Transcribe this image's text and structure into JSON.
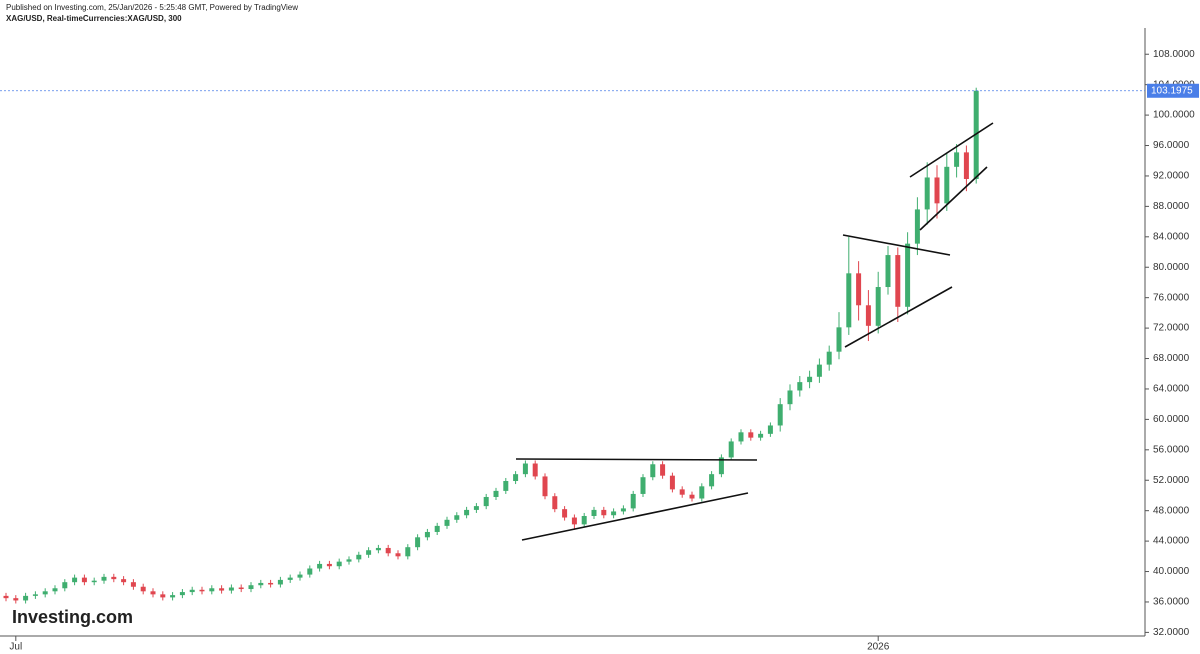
{
  "chart_data": {
    "type": "candlestick",
    "published": "Published on Investing.com, 25/Jan/2026 - 5:25:48 GMT, Powered by TradingView",
    "title": "XAG/USD, Real-timeCurrencies:XAG/USD, 300",
    "logo": "Investing.com",
    "up_color": "#3fae6f",
    "down_color": "#e0464f",
    "last_price": 103.1975,
    "last_price_color": "#4a7ee8",
    "ylim": [
      31,
      112.5
    ],
    "yticks": [
      {
        "value": 32,
        "label": "32.0000"
      },
      {
        "value": 36,
        "label": "36.0000"
      },
      {
        "value": 40,
        "label": "40.0000"
      },
      {
        "value": 44,
        "label": "44.0000"
      },
      {
        "value": 48,
        "label": "48.0000"
      },
      {
        "value": 52,
        "label": "52.0000"
      },
      {
        "value": 56,
        "label": "56.0000"
      },
      {
        "value": 60,
        "label": "60.0000"
      },
      {
        "value": 64,
        "label": "64.0000"
      },
      {
        "value": 68,
        "label": "68.0000"
      },
      {
        "value": 72,
        "label": "72.0000"
      },
      {
        "value": 76,
        "label": "76.0000"
      },
      {
        "value": 80,
        "label": "80.0000"
      },
      {
        "value": 84,
        "label": "84.0000"
      },
      {
        "value": 88,
        "label": "88.0000"
      },
      {
        "value": 92,
        "label": "92.0000"
      },
      {
        "value": 96,
        "label": "96.0000"
      },
      {
        "value": 100,
        "label": "100.0000"
      },
      {
        "value": 104,
        "label": "104.0000"
      },
      {
        "value": 108,
        "label": "108.0000"
      }
    ],
    "categories": [
      null,
      "Jul",
      null,
      null,
      null,
      null,
      null,
      null,
      null,
      null,
      null,
      null,
      null,
      null,
      null,
      null,
      null,
      null,
      null,
      null,
      null,
      null,
      null,
      null,
      null,
      null,
      null,
      null,
      null,
      null,
      null,
      null,
      null,
      null,
      null,
      null,
      null,
      null,
      null,
      null,
      null,
      null,
      null,
      null,
      null,
      null,
      null,
      null,
      null,
      null,
      null,
      null,
      null,
      null,
      null,
      null,
      null,
      null,
      null,
      null,
      null,
      null,
      null,
      null,
      null,
      null,
      null,
      null,
      null,
      null,
      null,
      null,
      null,
      null,
      null,
      null,
      null,
      null,
      null,
      null,
      null,
      null,
      null,
      null,
      null,
      null,
      null,
      null,
      null,
      "2026",
      null,
      null,
      null,
      null,
      null,
      null,
      null,
      null,
      null,
      null
    ],
    "open": [
      36.8,
      36.5,
      36.2,
      36.8,
      37.0,
      37.4,
      37.8,
      38.6,
      39.2,
      38.6,
      38.8,
      39.3,
      39.0,
      38.6,
      38.0,
      37.4,
      37.0,
      36.6,
      36.9,
      37.3,
      37.6,
      37.4,
      37.8,
      37.5,
      37.9,
      37.7,
      38.2,
      38.5,
      38.3,
      38.9,
      39.2,
      39.6,
      40.4,
      41.0,
      40.7,
      41.3,
      41.6,
      42.2,
      42.8,
      43.1,
      42.4,
      42.0,
      43.2,
      44.5,
      45.2,
      46.0,
      46.8,
      47.4,
      48.1,
      48.6,
      49.8,
      50.6,
      51.9,
      52.8,
      54.2,
      52.5,
      49.9,
      48.2,
      47.1,
      46.2,
      47.3,
      48.1,
      47.4,
      47.9,
      48.3,
      50.2,
      52.4,
      54.1,
      52.6,
      50.8,
      50.1,
      49.6,
      51.2,
      52.8,
      55.0,
      57.1,
      58.3,
      57.6,
      58.1,
      59.2,
      62.0,
      63.8,
      64.9,
      65.6,
      67.2,
      68.9,
      72.1,
      79.2,
      75.0,
      72.3,
      77.4,
      81.6,
      74.8,
      83.1,
      87.6,
      91.8,
      88.4,
      93.2,
      95.1,
      91.6
    ],
    "high": [
      37.2,
      36.9,
      37.2,
      37.4,
      37.8,
      38.2,
      39.0,
      39.6,
      39.6,
      39.2,
      39.7,
      39.7,
      39.4,
      39.0,
      38.4,
      37.8,
      37.4,
      37.3,
      37.7,
      38.0,
      38.0,
      38.2,
      38.2,
      38.3,
      38.3,
      38.6,
      38.9,
      38.9,
      39.3,
      39.6,
      40.0,
      40.8,
      41.4,
      41.4,
      41.7,
      42.0,
      42.6,
      43.2,
      43.5,
      43.5,
      42.8,
      43.6,
      44.9,
      45.6,
      46.4,
      47.2,
      47.8,
      48.5,
      49.0,
      50.2,
      51.0,
      52.3,
      53.2,
      54.6,
      54.6,
      52.9,
      50.3,
      48.6,
      47.5,
      47.7,
      48.5,
      48.5,
      48.3,
      48.7,
      50.6,
      52.8,
      54.5,
      54.5,
      53.0,
      51.2,
      50.5,
      51.6,
      53.2,
      55.4,
      57.5,
      58.7,
      58.7,
      58.5,
      59.6,
      62.8,
      64.6,
      65.7,
      66.4,
      68.0,
      69.7,
      74.1,
      84.0,
      80.8,
      77.0,
      79.4,
      82.8,
      82.6,
      84.6,
      89.2,
      93.8,
      93.4,
      95.0,
      96.2,
      96.0,
      103.6
    ],
    "low": [
      36.1,
      35.8,
      35.8,
      36.4,
      36.6,
      37.0,
      37.4,
      38.2,
      38.2,
      38.2,
      38.4,
      38.6,
      38.2,
      37.6,
      37.0,
      36.6,
      36.2,
      36.2,
      36.5,
      36.9,
      37.0,
      37.0,
      37.1,
      37.1,
      37.3,
      37.3,
      37.8,
      37.9,
      37.9,
      38.5,
      38.8,
      39.2,
      40.0,
      40.3,
      40.3,
      40.9,
      41.2,
      41.8,
      42.4,
      42.0,
      41.6,
      41.6,
      42.8,
      44.1,
      44.8,
      45.6,
      46.4,
      47.0,
      47.7,
      48.2,
      49.4,
      50.2,
      51.5,
      52.4,
      52.1,
      49.5,
      47.8,
      46.7,
      45.5,
      45.8,
      46.9,
      47.0,
      47.0,
      47.5,
      47.9,
      49.8,
      52.0,
      52.2,
      50.4,
      49.7,
      49.2,
      49.2,
      50.8,
      52.4,
      54.6,
      56.7,
      57.2,
      57.2,
      57.7,
      58.4,
      61.2,
      63.0,
      64.1,
      64.8,
      66.4,
      67.9,
      71.1,
      73.0,
      70.3,
      71.3,
      76.4,
      72.8,
      73.8,
      81.6,
      85.6,
      86.4,
      87.4,
      91.8,
      90.0,
      91.0
    ],
    "close": [
      36.5,
      36.2,
      36.8,
      37.0,
      37.4,
      37.8,
      38.6,
      39.2,
      38.6,
      38.8,
      39.3,
      39.0,
      38.6,
      38.0,
      37.4,
      37.0,
      36.6,
      36.9,
      37.3,
      37.6,
      37.4,
      37.8,
      37.5,
      37.9,
      37.7,
      38.2,
      38.5,
      38.3,
      38.9,
      39.2,
      39.6,
      40.4,
      41.0,
      40.7,
      41.3,
      41.6,
      42.2,
      42.8,
      43.1,
      42.4,
      42.0,
      43.2,
      44.5,
      45.2,
      46.0,
      46.8,
      47.4,
      48.1,
      48.6,
      49.8,
      50.6,
      51.9,
      52.8,
      54.2,
      52.5,
      49.9,
      48.2,
      47.1,
      46.2,
      47.3,
      48.1,
      47.4,
      47.9,
      48.3,
      50.2,
      52.4,
      54.1,
      52.6,
      50.8,
      50.1,
      49.6,
      51.2,
      52.8,
      55.0,
      57.1,
      58.3,
      57.6,
      58.1,
      59.2,
      62.0,
      63.8,
      64.9,
      65.6,
      67.2,
      68.9,
      72.1,
      79.2,
      75.0,
      72.3,
      77.4,
      81.6,
      74.8,
      83.1,
      87.6,
      91.8,
      88.4,
      93.2,
      95.1,
      91.6,
      103.2
    ]
  }
}
